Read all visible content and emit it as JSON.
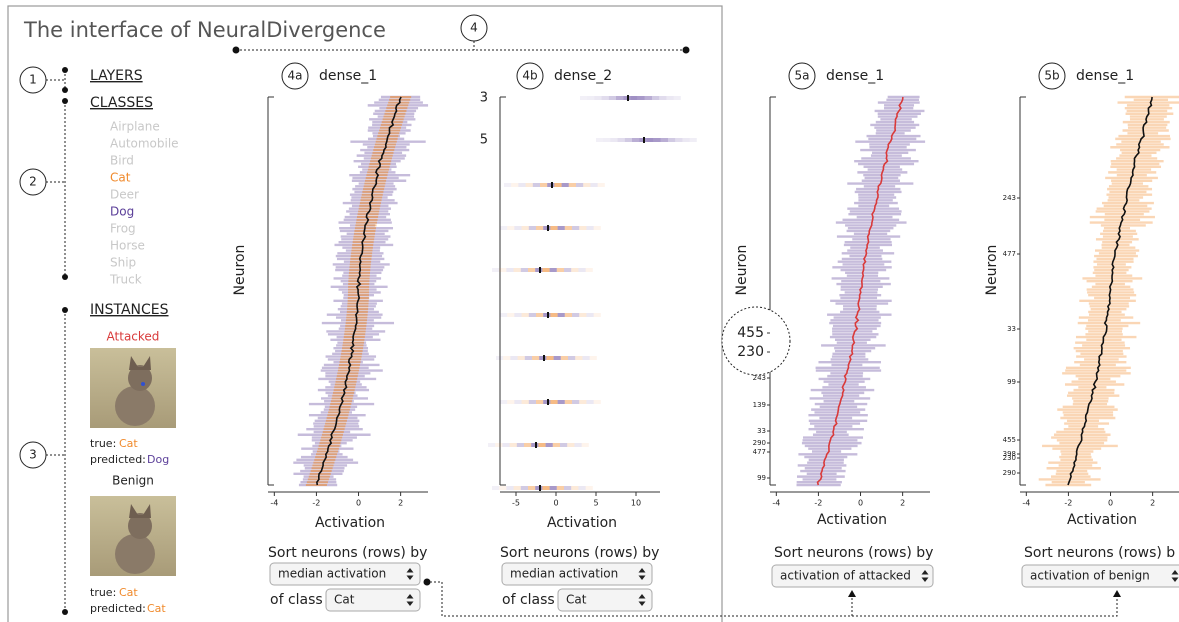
{
  "title": "The interface of NeuralDivergence",
  "callouts": {
    "layers": "1",
    "classes": "2",
    "instances": "3",
    "overview": "4"
  },
  "colors": {
    "attacked": "#5b3f99",
    "benign": "#f08a2c",
    "median_attacked": "#d93a3a",
    "median": "#111111",
    "inactive": "#c8c8c8"
  },
  "sidebar": {
    "layers": "LAYERS",
    "classes": "CLASSES",
    "class_list": [
      {
        "name": "Airplane"
      },
      {
        "name": "Automobile"
      },
      {
        "name": "Bird"
      },
      {
        "name": "Cat",
        "color": "#f08a2c"
      },
      {
        "name": "Deer"
      },
      {
        "name": "Dog",
        "color": "#5b3f99"
      },
      {
        "name": "Frog"
      },
      {
        "name": "Horse"
      },
      {
        "name": "Ship"
      },
      {
        "name": "Truck"
      }
    ],
    "instances": "INSTANCES",
    "attacked": {
      "heading": "Attacked",
      "true_label": "true:",
      "true_class": "Cat",
      "predicted_label": "predicted:",
      "predicted_class": "Dog"
    },
    "benign": {
      "heading": "Benign",
      "true_label": "true:",
      "true_class": "Cat",
      "predicted_label": "predicted:",
      "predicted_class": "Cat"
    }
  },
  "panels": [
    {
      "badge": "4a",
      "title": "dense_1",
      "style": "violin",
      "y_label": "Neuron",
      "x_label": "Activation",
      "xlim": [
        -4.3,
        3.3
      ],
      "xticks": [
        -4,
        -2,
        0,
        2
      ],
      "neuron_labels": [],
      "sort_label": "Sort neurons (rows) by",
      "sort_by": "median activation",
      "class_label": "of class",
      "class": "Cat"
    },
    {
      "badge": "4b",
      "title": "dense_2",
      "style": "strip",
      "x_label": "Activation",
      "xlim": [
        -7,
        13
      ],
      "xticks": [
        -5,
        0,
        5,
        10
      ],
      "neuron_labels": [
        "3",
        "5"
      ],
      "sort_label": "Sort neurons (rows) by",
      "sort_by": "median activation",
      "class_label": "of class",
      "class": "Cat"
    },
    {
      "badge": "5a",
      "title": "dense_1",
      "style": "attacked",
      "y_label": "Neuron",
      "x_label": "Activation",
      "xlim": [
        -4.3,
        3.3
      ],
      "xticks": [
        -4,
        -2,
        0,
        2
      ],
      "zoom_labels": [
        "455",
        "230"
      ],
      "neuron_labels": [
        "243",
        "139",
        "33",
        "290",
        "477",
        "99"
      ],
      "sort_label": "Sort neurons (rows) by",
      "sort_by": "activation of attacked"
    },
    {
      "badge": "5b",
      "title": "dense_1",
      "style": "benign",
      "y_label": "Neuron",
      "x_label": "Activation",
      "xlim": [
        -4.3,
        3.3
      ],
      "xticks": [
        -4,
        -2,
        0,
        2
      ],
      "neuron_labels": [
        "243",
        "477",
        "33",
        "99",
        "455",
        "398",
        "230",
        "290"
      ],
      "sort_label": "Sort neurons (rows) b",
      "sort_by": "activation of benign"
    }
  ]
}
